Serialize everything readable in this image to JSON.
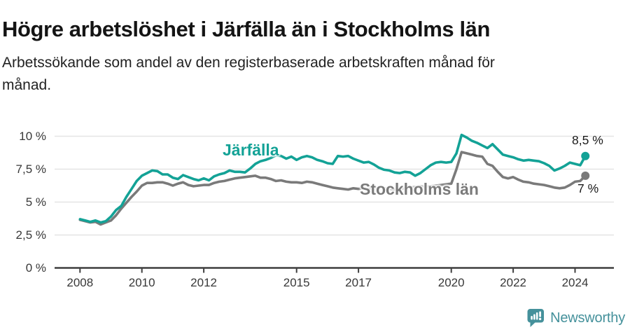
{
  "display": {
    "subtitle_lines": [
      "Arbetssökande som andel av den registerbaserade arbetskraften månad för",
      "månad."
    ]
  },
  "footer": {
    "brand": "Newsworthy",
    "logo_icon": "newsworthy-speech-bubble-bar-chart-icon",
    "logo_color": "#45919B"
  },
  "colors": {
    "jarfalla_teal": "#13A296",
    "stockholm_gray": "#7A7A7A",
    "grid": "#E4E4E4",
    "axis": "#3F3F3F",
    "tick_text": "#383838",
    "title_text": "#141414"
  },
  "chart_data": {
    "type": "line",
    "title": "Högre arbetslöshet i Järfälla än i Stockholms län",
    "subtitle": "Arbetssökande som andel av den registerbaserade arbetskraften månad för månad.",
    "x_start": 2008.0,
    "x_step_years": 0.166667,
    "x_ticks": [
      2008,
      2010,
      2012,
      2015,
      2017,
      2020,
      2022,
      2024
    ],
    "ylim": [
      0,
      10
    ],
    "y_ticks": [
      0,
      2.5,
      5,
      7.5,
      10
    ],
    "y_tick_labels": [
      "0 %",
      "2,5 %",
      "5 %",
      "7,5 %",
      "10 %"
    ],
    "grid": true,
    "legend_position": "inline-labels",
    "unit": "percent",
    "series": [
      {
        "name": "Järfälla",
        "color": "#13A296",
        "end_label": "8,5 %",
        "end_value": 8.5,
        "values": [
          3.7,
          3.6,
          3.5,
          3.6,
          3.45,
          3.55,
          3.9,
          4.4,
          4.7,
          5.4,
          6.0,
          6.6,
          7.0,
          7.2,
          7.4,
          7.35,
          7.1,
          7.1,
          6.85,
          6.75,
          7.05,
          6.9,
          6.75,
          6.65,
          6.8,
          6.65,
          6.95,
          7.1,
          7.2,
          7.4,
          7.3,
          7.3,
          7.25,
          7.55,
          7.9,
          8.1,
          8.2,
          8.35,
          8.55,
          8.5,
          8.3,
          8.45,
          8.2,
          8.4,
          8.5,
          8.4,
          8.2,
          8.1,
          7.95,
          7.9,
          8.5,
          8.45,
          8.5,
          8.3,
          8.15,
          8.0,
          8.05,
          7.85,
          7.6,
          7.45,
          7.4,
          7.25,
          7.2,
          7.3,
          7.25,
          7.0,
          7.2,
          7.5,
          7.8,
          8.0,
          8.05,
          8.0,
          8.05,
          8.7,
          10.1,
          9.9,
          9.65,
          9.5,
          9.3,
          9.1,
          9.4,
          9.0,
          8.6,
          8.5,
          8.4,
          8.25,
          8.15,
          8.2,
          8.15,
          8.1,
          7.95,
          7.75,
          7.4,
          7.55,
          7.75,
          8.0,
          7.9,
          7.8,
          8.5
        ]
      },
      {
        "name": "Stockholms län",
        "color": "#7A7A7A",
        "end_label": "7 %",
        "end_value": 7,
        "values": [
          3.65,
          3.55,
          3.45,
          3.5,
          3.3,
          3.45,
          3.6,
          4.0,
          4.5,
          4.95,
          5.4,
          5.8,
          6.25,
          6.45,
          6.45,
          6.5,
          6.5,
          6.4,
          6.25,
          6.4,
          6.5,
          6.3,
          6.2,
          6.25,
          6.3,
          6.3,
          6.45,
          6.55,
          6.6,
          6.7,
          6.8,
          6.85,
          6.9,
          6.95,
          7.0,
          6.85,
          6.85,
          6.75,
          6.6,
          6.65,
          6.55,
          6.5,
          6.5,
          6.45,
          6.55,
          6.5,
          6.4,
          6.3,
          6.2,
          6.1,
          6.05,
          6.0,
          5.95,
          6.05,
          6.0,
          6.05,
          6.0,
          6.05,
          6.1,
          6.05,
          6.0,
          5.95,
          6.0,
          6.05,
          6.1,
          6.15,
          6.2,
          6.15,
          6.2,
          6.25,
          6.3,
          6.35,
          6.4,
          7.5,
          8.8,
          8.7,
          8.6,
          8.5,
          8.45,
          7.9,
          7.75,
          7.3,
          6.9,
          6.8,
          6.9,
          6.7,
          6.55,
          6.5,
          6.4,
          6.35,
          6.3,
          6.2,
          6.1,
          6.05,
          6.1,
          6.3,
          6.55,
          6.6,
          7.0
        ]
      }
    ]
  }
}
